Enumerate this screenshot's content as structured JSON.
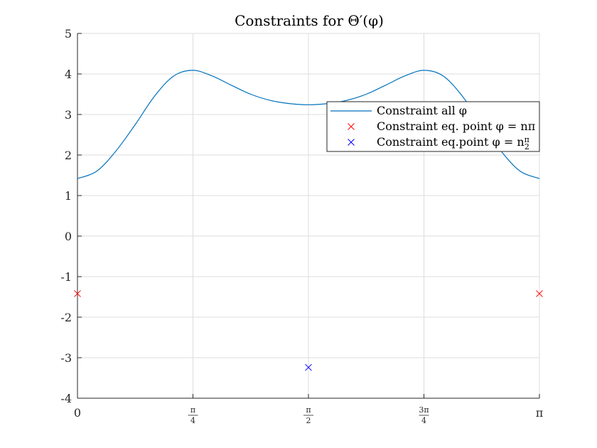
{
  "chart_data": {
    "type": "line",
    "title": "Constraints for Θ′(φ)",
    "xlabel": "",
    "ylabel": "",
    "xlim": [
      0,
      3.1416
    ],
    "ylim": [
      -4,
      5
    ],
    "grid": true,
    "legend_position": "top-right",
    "x_ticks": [
      {
        "value": 0,
        "label": "0"
      },
      {
        "value": 0.7854,
        "label": "π/4"
      },
      {
        "value": 1.5708,
        "label": "π/2"
      },
      {
        "value": 2.3562,
        "label": "3π/4"
      },
      {
        "value": 3.1416,
        "label": "π"
      }
    ],
    "y_ticks": [
      {
        "value": 5,
        "label": "5"
      },
      {
        "value": 4,
        "label": "4"
      },
      {
        "value": 3,
        "label": "3"
      },
      {
        "value": 2,
        "label": "2"
      },
      {
        "value": 1,
        "label": "1"
      },
      {
        "value": 0,
        "label": "0"
      },
      {
        "value": -1,
        "label": "-1"
      },
      {
        "value": -2,
        "label": "-2"
      },
      {
        "value": -3,
        "label": "-3"
      },
      {
        "value": -4,
        "label": "-4"
      }
    ],
    "series": [
      {
        "name": "Constraint all φ",
        "kind": "line",
        "color": "#0072BD",
        "x": [
          0,
          0.1309,
          0.2618,
          0.3927,
          0.5236,
          0.6545,
          0.7854,
          0.9163,
          1.0472,
          1.1781,
          1.309,
          1.4399,
          1.5708,
          1.7017,
          1.8326,
          1.9635,
          2.0944,
          2.2253,
          2.3562,
          2.4871,
          2.618,
          2.7489,
          2.8798,
          3.0107,
          3.1416
        ],
        "y": [
          1.42,
          1.6,
          2.1,
          2.75,
          3.45,
          3.95,
          4.09,
          3.95,
          3.72,
          3.5,
          3.35,
          3.27,
          3.24,
          3.27,
          3.35,
          3.5,
          3.72,
          3.95,
          4.09,
          3.95,
          3.45,
          2.75,
          2.1,
          1.6,
          1.42
        ]
      },
      {
        "name": "Constraint eq. point φ = nπ",
        "kind": "marker",
        "marker": "x",
        "color": "#FF0000",
        "x": [
          0,
          3.1416
        ],
        "y": [
          -1.42,
          -1.42
        ]
      },
      {
        "name": "Constraint eq.point φ = nπ/2",
        "kind": "marker",
        "marker": "x",
        "color": "#0000FF",
        "x": [
          1.5708
        ],
        "y": [
          -3.24
        ]
      }
    ]
  }
}
